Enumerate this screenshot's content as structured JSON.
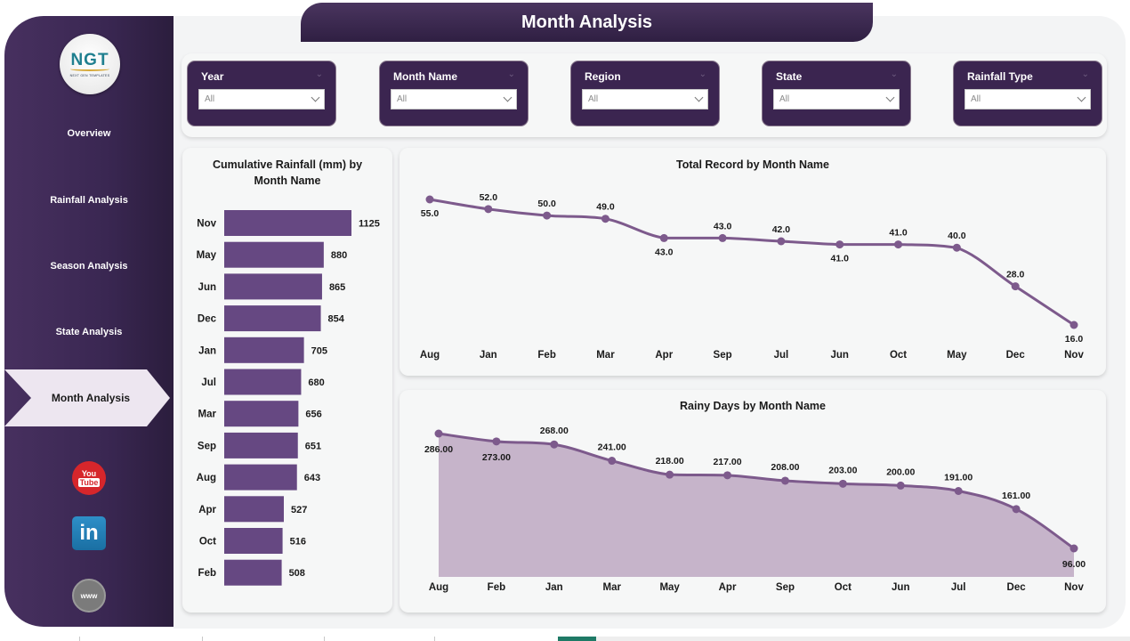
{
  "page": {
    "title": "Month Analysis"
  },
  "logo": {
    "name": "NGT",
    "tagline": "NEXT GEN TEMPLATES"
  },
  "sidebar": {
    "items": [
      {
        "label": "Overview",
        "active": false
      },
      {
        "label": "Rainfall Analysis",
        "active": false
      },
      {
        "label": "Season Analysis",
        "active": false
      },
      {
        "label": "State Analysis",
        "active": false
      },
      {
        "label": "Month Analysis",
        "active": true
      }
    ],
    "social": [
      {
        "name": "youtube-icon",
        "text_top": "You",
        "text_bottom": "Tube"
      },
      {
        "name": "linkedin-icon",
        "text": "in"
      },
      {
        "name": "website-icon",
        "text": "www"
      }
    ]
  },
  "filters": [
    {
      "label": "Year",
      "value": "All"
    },
    {
      "label": "Month Name",
      "value": "All"
    },
    {
      "label": "Region",
      "value": "All"
    },
    {
      "label": "State",
      "value": "All"
    },
    {
      "label": "Rainfall Type",
      "value": "All"
    }
  ],
  "colors": {
    "accent": "#664882",
    "line": "#7d5a8c",
    "area_fill": "#c6b4ca",
    "sidebar": "#3a2752"
  },
  "chart_data": [
    {
      "id": "cumulative-rainfall",
      "type": "bar",
      "orientation": "horizontal",
      "title": "Cumulative Rainfall (mm) by Month Name",
      "categories": [
        "Nov",
        "May",
        "Jun",
        "Dec",
        "Jan",
        "Jul",
        "Mar",
        "Sep",
        "Aug",
        "Apr",
        "Oct",
        "Feb"
      ],
      "values": [
        1125,
        880,
        865,
        854,
        705,
        680,
        656,
        651,
        643,
        527,
        516,
        508
      ],
      "xlabel": "",
      "ylabel": "",
      "xlim": [
        0,
        1125
      ],
      "grid": false,
      "data_labels": true
    },
    {
      "id": "total-record",
      "type": "line",
      "title": "Total Record by Month Name",
      "categories": [
        "Aug",
        "Jan",
        "Feb",
        "Mar",
        "Apr",
        "Sep",
        "Jul",
        "Jun",
        "Oct",
        "May",
        "Dec",
        "Nov"
      ],
      "values": [
        55,
        52,
        50,
        49,
        43,
        43,
        42,
        41,
        41,
        40,
        28,
        16
      ],
      "labels": [
        "55.0",
        "52.0",
        "50.0",
        "49.0",
        "43.0",
        "43.0",
        "42.0",
        "41.0",
        "41.0",
        "40.0",
        "28.0",
        "16.0"
      ],
      "label_positions": [
        "below",
        "above",
        "above",
        "above",
        "below",
        "above",
        "above",
        "below",
        "above",
        "above",
        "above",
        "below"
      ],
      "ylim": [
        16,
        55
      ],
      "grid": false
    },
    {
      "id": "rainy-days",
      "type": "area",
      "title": "Rainy Days by Month Name",
      "categories": [
        "Aug",
        "Feb",
        "Jan",
        "Mar",
        "May",
        "Apr",
        "Sep",
        "Oct",
        "Jun",
        "Jul",
        "Dec",
        "Nov"
      ],
      "values": [
        286,
        273,
        268,
        241,
        218,
        217,
        208,
        203,
        200,
        191,
        161,
        96
      ],
      "labels": [
        "286.00",
        "273.00",
        "268.00",
        "241.00",
        "218.00",
        "217.00",
        "208.00",
        "203.00",
        "200.00",
        "191.00",
        "161.00",
        "96.00"
      ],
      "label_positions": [
        "below",
        "below",
        "above",
        "above",
        "above",
        "above",
        "above",
        "above",
        "above",
        "above",
        "above",
        "below"
      ],
      "ylim": [
        0,
        286
      ],
      "grid": false
    }
  ]
}
